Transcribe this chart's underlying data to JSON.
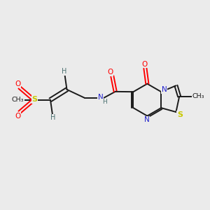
{
  "background_color": "#ebebeb",
  "bond_color": "#1a1a1a",
  "colors": {
    "O": "#ff0000",
    "N": "#2020cc",
    "S": "#c8c800",
    "H": "#4a7070"
  },
  "figsize": [
    3.0,
    3.0
  ],
  "dpi": 100
}
